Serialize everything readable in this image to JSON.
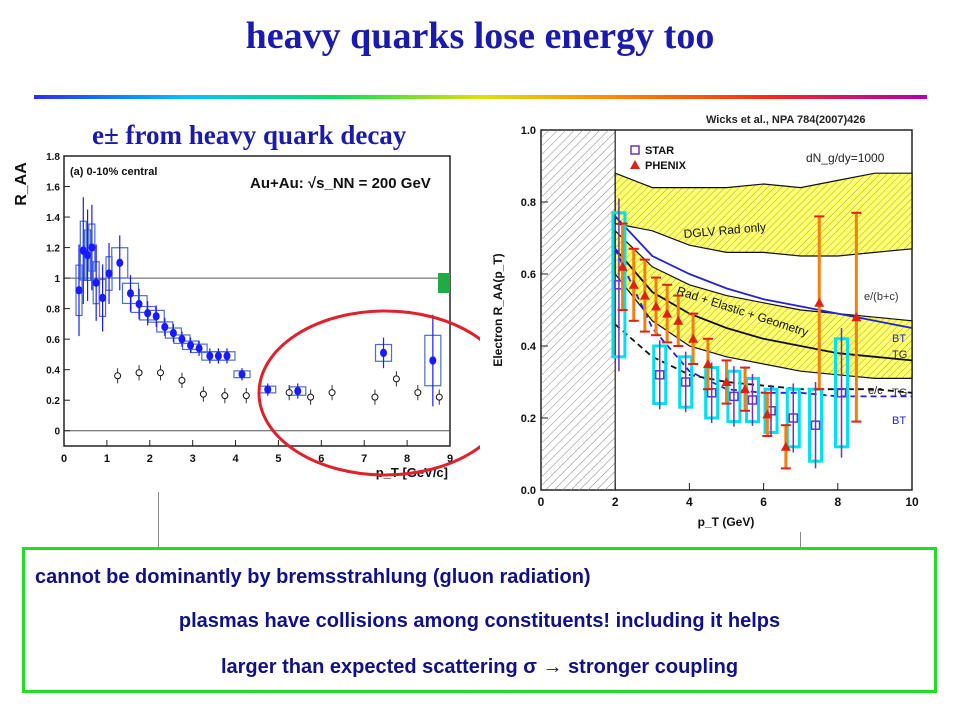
{
  "title": "heavy quarks lose energy too",
  "subtitle": "e± from heavy quark decay",
  "citation": "Wicks et al., NPA 784(2007)426",
  "notes": [
    "cannot be dominantly by bremsstrahlung (gluon radiation)",
    "plasmas have collisions among constituents! including it helps",
    "larger than expected scattering σ → stronger coupling"
  ],
  "colors": {
    "title": "#1a1ab0",
    "note_border": "#22dd22",
    "ellipse": "#e0202a"
  },
  "chart_data": [
    {
      "type": "scatter",
      "panel_label": "(a) 0-10% central",
      "system_label": "Au+Au: √s_NN = 200 GeV",
      "xlabel": "p_T [GeV/c]",
      "ylabel": "R_AA",
      "xlim": [
        0,
        9
      ],
      "ylim": [
        -0.1,
        1.8
      ],
      "xticks": [
        "0",
        "1",
        "2",
        "3",
        "4",
        "5",
        "6",
        "7",
        "8",
        "9"
      ],
      "yticks": [
        "0",
        "0.2",
        "0.4",
        "0.6",
        "0.8",
        "1",
        "1.2",
        "1.4",
        "1.6",
        "1.8"
      ],
      "reference_lines": [
        1,
        0
      ],
      "series": [
        {
          "marker": "filled-circle",
          "color": "#1a1aff",
          "points": [
            {
              "x": 0.35,
              "y": 0.92,
              "err": 0.3
            },
            {
              "x": 0.45,
              "y": 1.18,
              "err": 0.35
            },
            {
              "x": 0.55,
              "y": 1.15,
              "err": 0.3
            },
            {
              "x": 0.65,
              "y": 1.2,
              "err": 0.28
            },
            {
              "x": 0.75,
              "y": 0.97,
              "err": 0.25
            },
            {
              "x": 0.9,
              "y": 0.87,
              "err": 0.22
            },
            {
              "x": 1.05,
              "y": 1.03,
              "err": 0.2
            },
            {
              "x": 1.3,
              "y": 1.1,
              "err": 0.18
            },
            {
              "x": 1.55,
              "y": 0.9,
              "err": 0.12
            },
            {
              "x": 1.75,
              "y": 0.83,
              "err": 0.1
            },
            {
              "x": 1.95,
              "y": 0.77,
              "err": 0.08
            },
            {
              "x": 2.15,
              "y": 0.75,
              "err": 0.07
            },
            {
              "x": 2.35,
              "y": 0.68,
              "err": 0.06
            },
            {
              "x": 2.55,
              "y": 0.64,
              "err": 0.06
            },
            {
              "x": 2.75,
              "y": 0.6,
              "err": 0.05
            },
            {
              "x": 2.95,
              "y": 0.56,
              "err": 0.05
            },
            {
              "x": 3.15,
              "y": 0.54,
              "err": 0.05
            },
            {
              "x": 3.4,
              "y": 0.49,
              "err": 0.05
            },
            {
              "x": 3.6,
              "y": 0.49,
              "err": 0.05
            },
            {
              "x": 3.8,
              "y": 0.49,
              "err": 0.05
            },
            {
              "x": 4.15,
              "y": 0.37,
              "err": 0.04
            },
            {
              "x": 4.75,
              "y": 0.27,
              "err": 0.04
            },
            {
              "x": 5.45,
              "y": 0.26,
              "err": 0.05
            },
            {
              "x": 7.45,
              "y": 0.51,
              "err": 0.1
            },
            {
              "x": 8.6,
              "y": 0.46,
              "err": 0.3
            }
          ]
        },
        {
          "marker": "open-circle",
          "color": "#111111",
          "points": [
            {
              "x": 1.25,
              "y": 0.36
            },
            {
              "x": 1.75,
              "y": 0.38
            },
            {
              "x": 2.25,
              "y": 0.38
            },
            {
              "x": 2.75,
              "y": 0.33
            },
            {
              "x": 3.25,
              "y": 0.24
            },
            {
              "x": 3.75,
              "y": 0.23
            },
            {
              "x": 4.25,
              "y": 0.23
            },
            {
              "x": 5.25,
              "y": 0.25
            },
            {
              "x": 5.75,
              "y": 0.22
            },
            {
              "x": 6.25,
              "y": 0.25
            },
            {
              "x": 7.25,
              "y": 0.22
            },
            {
              "x": 7.75,
              "y": 0.34
            },
            {
              "x": 8.25,
              "y": 0.25
            },
            {
              "x": 8.75,
              "y": 0.22
            }
          ]
        }
      ],
      "annotation": "red ellipse highlighting high-pT region (4.6 to 8.9 GeV/c)"
    },
    {
      "type": "line",
      "xlabel": "p_T (GeV)",
      "ylabel": "Electron R_AA(p_T)",
      "xlim": [
        0,
        10
      ],
      "ylim": [
        0,
        1.0
      ],
      "xticks": [
        "0",
        "2",
        "4",
        "6",
        "8",
        "10"
      ],
      "yticks": [
        "0.0",
        "0.2",
        "0.4",
        "0.6",
        "0.8",
        "1.0"
      ],
      "legend": [
        "STAR",
        "PHENIX"
      ],
      "label_dndy": "dN_g/dy=1000",
      "band_labels": [
        "DGLV Rad only",
        "Rad + Elastic + Geometry"
      ],
      "curve_labels": [
        "e/(b+c)",
        "BT",
        "TG",
        "e/c",
        "TG",
        "BT"
      ],
      "bands": [
        {
          "name": "DGLV Rad only",
          "x": [
            2,
            3,
            4,
            5,
            6,
            7,
            8,
            9,
            10
          ],
          "upper": [
            0.88,
            0.84,
            0.84,
            0.84,
            0.85,
            0.84,
            0.86,
            0.88,
            0.88
          ],
          "lower": [
            0.74,
            0.72,
            0.68,
            0.66,
            0.66,
            0.65,
            0.65,
            0.66,
            0.67
          ]
        },
        {
          "name": "Rad + Elastic + Geometry",
          "x": [
            2,
            3,
            4,
            5,
            6,
            7,
            8,
            9,
            10
          ],
          "upper": [
            0.72,
            0.62,
            0.57,
            0.54,
            0.52,
            0.5,
            0.49,
            0.48,
            0.47
          ],
          "lower": [
            0.6,
            0.47,
            0.4,
            0.37,
            0.35,
            0.33,
            0.32,
            0.31,
            0.31
          ]
        }
      ],
      "series": [
        {
          "name": "e/(b+c) BT",
          "style": "solid",
          "color": "#2222dd",
          "x": [
            2,
            3,
            4,
            5,
            6,
            7,
            8,
            9,
            10
          ],
          "y": [
            0.76,
            0.65,
            0.6,
            0.56,
            0.53,
            0.51,
            0.49,
            0.47,
            0.45
          ]
        },
        {
          "name": "e/(b+c) TG",
          "style": "solid",
          "color": "#111111",
          "x": [
            2,
            3,
            4,
            5,
            6,
            7,
            8,
            9,
            10
          ],
          "y": [
            0.67,
            0.55,
            0.49,
            0.45,
            0.42,
            0.4,
            0.38,
            0.37,
            0.36
          ]
        },
        {
          "name": "e/c TG",
          "style": "dashed",
          "color": "#111111",
          "x": [
            2,
            3,
            4,
            5,
            6,
            7,
            8,
            9,
            10
          ],
          "y": [
            0.46,
            0.37,
            0.32,
            0.3,
            0.29,
            0.28,
            0.28,
            0.28,
            0.27
          ]
        },
        {
          "name": "e/c BT",
          "style": "dashed",
          "color": "#2222dd",
          "x": [
            2,
            3,
            4,
            5,
            6,
            7,
            8,
            9,
            10
          ],
          "y": [
            0.67,
            0.45,
            0.33,
            0.28,
            0.27,
            0.27,
            0.26,
            0.26,
            0.26
          ]
        },
        {
          "name": "STAR",
          "marker": "open-square",
          "color": "#7030c0",
          "x": [
            2.1,
            3.2,
            3.9,
            4.6,
            5.2,
            5.7,
            6.2,
            6.8,
            7.4,
            8.1
          ],
          "y": [
            0.57,
            0.32,
            0.3,
            0.27,
            0.26,
            0.25,
            0.22,
            0.2,
            0.18,
            0.27
          ],
          "err": [
            0.2,
            0.08,
            0.07,
            0.07,
            0.07,
            0.06,
            0.06,
            0.08,
            0.1,
            0.15
          ]
        },
        {
          "name": "PHENIX",
          "marker": "filled-triangle",
          "color": "#e02010",
          "x": [
            2.2,
            2.5,
            2.8,
            3.1,
            3.4,
            3.7,
            4.1,
            4.5,
            5.0,
            5.5,
            6.1,
            6.6,
            7.5,
            8.5
          ],
          "y": [
            0.62,
            0.57,
            0.54,
            0.51,
            0.49,
            0.47,
            0.42,
            0.35,
            0.3,
            0.28,
            0.21,
            0.12,
            0.52,
            0.48
          ],
          "err": [
            0.12,
            0.1,
            0.1,
            0.08,
            0.08,
            0.07,
            0.07,
            0.07,
            0.06,
            0.06,
            0.06,
            0.06,
            0.24,
            0.29
          ]
        }
      ]
    }
  ]
}
